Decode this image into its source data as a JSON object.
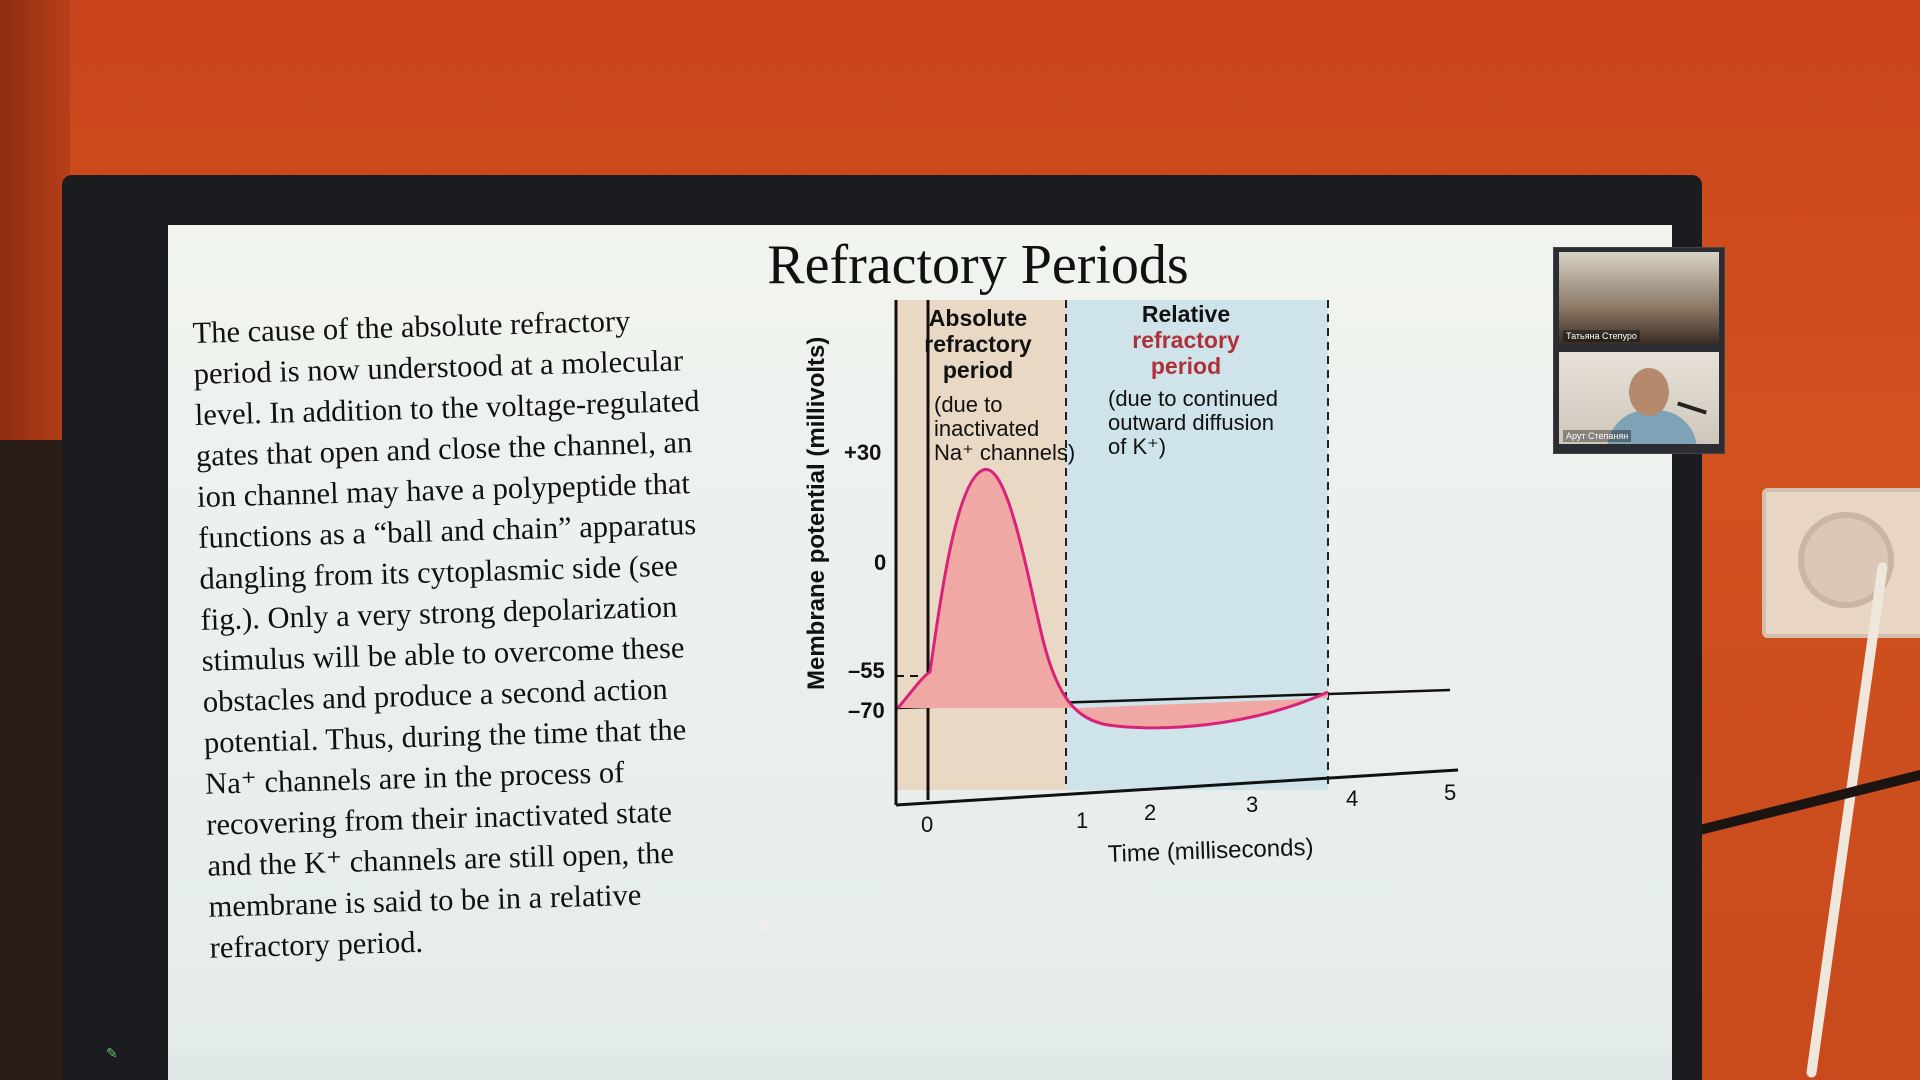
{
  "slide": {
    "title": "Refractory Periods",
    "body_lines": [
      "The cause of the absolute refractory",
      "period is now understood at a molecular",
      "level. In addition to the voltage-regulated",
      "gates that open and close the channel, an",
      "ion channel may have a polypeptide that",
      "functions as a “ball and chain” apparatus",
      "dangling from its cytoplasmic side (see",
      "fig.). Only a very strong depolarization",
      "stimulus will be able to overcome these",
      "obstacles and produce a second action",
      "potential. Thus, during the time that the",
      "Na⁺ channels are in the process of",
      "recovering from their inactivated state",
      "and the K⁺ channels are still open, the",
      "membrane is said to be in a relative",
      "refractory period."
    ]
  },
  "figure": {
    "y_axis_label": "Membrane potential (millivolts)",
    "x_axis_label": "Time (milliseconds)",
    "y_ticks": [
      "+30",
      "0",
      "–55",
      "–70"
    ],
    "x_ticks": [
      "0",
      "1",
      "2",
      "3",
      "4",
      "5"
    ],
    "absolute": {
      "title_lines": [
        "Absolute",
        "refractory",
        "period"
      ],
      "note_lines": [
        "(due to",
        "inactivated",
        "Na⁺ channels)"
      ]
    },
    "relative": {
      "title_lines": [
        "Relative",
        "refractory",
        "period"
      ],
      "note_lines": [
        "(due to continued",
        "outward diffusion",
        "of K⁺)"
      ]
    },
    "colors": {
      "absolute_fill": "#e8d8c4",
      "relative_fill": "#cfe3ea",
      "curve": "#d8237a",
      "curve_fill": "#f0a8a4",
      "relative_title": "#b0303a"
    }
  },
  "video_call": {
    "participants": [
      "Татьяна Степуро",
      "Арут Степанян"
    ]
  },
  "colors": {
    "wall": "#cc4a1d",
    "monitor_bezel": "#1a1c20"
  }
}
